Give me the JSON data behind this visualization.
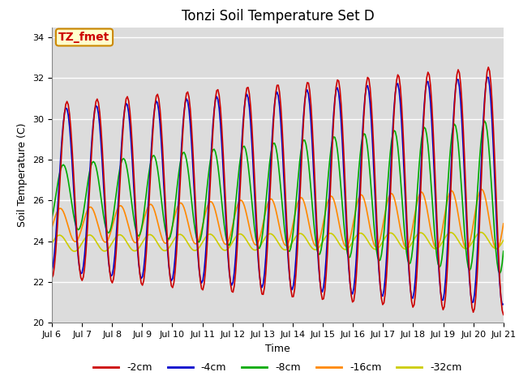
{
  "title": "Tonzi Soil Temperature Set D",
  "xlabel": "Time",
  "ylabel": "Soil Temperature (C)",
  "xlim_start": 0,
  "xlim_end": 15,
  "ylim": [
    20,
    34.5
  ],
  "yticks": [
    20,
    22,
    24,
    26,
    28,
    30,
    32,
    34
  ],
  "xtick_labels": [
    "Jul 6",
    "Jul 7",
    "Jul 8",
    "Jul 9",
    "Jul 10",
    "Jul 11",
    "Jul 12",
    "Jul 13",
    "Jul 14",
    "Jul 15",
    "Jul 16",
    "Jul 17",
    "Jul 18",
    "Jul 19",
    "Jul 20",
    "Jul 21"
  ],
  "legend_labels": [
    "-2cm",
    "-4cm",
    "-8cm",
    "-16cm",
    "-32cm"
  ],
  "colors": [
    "#cc0000",
    "#0000cc",
    "#00aa00",
    "#ff8800",
    "#cccc00"
  ],
  "background_color": "#dcdcdc",
  "annotation_text": "TZ_fmet",
  "annotation_bg": "#ffffcc",
  "annotation_border": "#cc8800",
  "title_fontsize": 12,
  "axis_label_fontsize": 9,
  "tick_fontsize": 8,
  "legend_fontsize": 9,
  "linewidth": 1.2
}
